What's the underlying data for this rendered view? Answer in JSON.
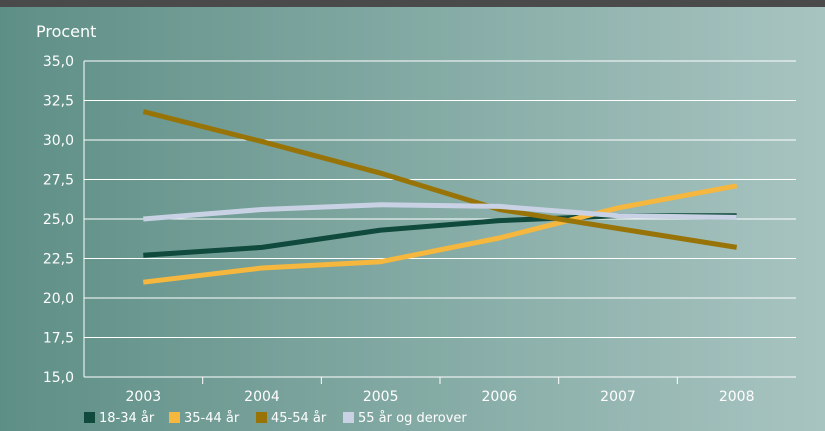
{
  "colors": {
    "background_left": "#5e8f86",
    "background_right": "#a8c4c1",
    "top_bar": "#4a4a4a",
    "grid": "#ffffff",
    "text": "#ffffff"
  },
  "chart_data": {
    "type": "line",
    "title": "",
    "xlabel": "",
    "ylabel": "Procent",
    "x": [
      2003,
      2004,
      2005,
      2006,
      2007,
      2008
    ],
    "categories": [
      "2003",
      "2004",
      "2005",
      "2006",
      "2007",
      "2008"
    ],
    "ylim": [
      15.0,
      35.0
    ],
    "yticks": [
      "15,0",
      "17,5",
      "20,0",
      "22,5",
      "25,0",
      "27,5",
      "30,0",
      "32,5",
      "35,0"
    ],
    "grid": "horizontal",
    "legend_position": "bottom",
    "series": [
      {
        "name": "18-34 år",
        "color": "#0f4a3c",
        "values": [
          22.7,
          23.2,
          24.3,
          24.9,
          25.2,
          25.2
        ]
      },
      {
        "name": "35-44 år",
        "color": "#f5b73d",
        "values": [
          21.0,
          21.9,
          22.3,
          23.8,
          25.7,
          27.1
        ]
      },
      {
        "name": "45-54 år",
        "color": "#987408",
        "values": [
          31.8,
          29.9,
          27.9,
          25.6,
          24.4,
          23.2
        ]
      },
      {
        "name": "55 år og derover",
        "color": "#c8d2e4",
        "values": [
          25.0,
          25.6,
          25.9,
          25.8,
          25.2,
          25.1
        ]
      }
    ]
  }
}
